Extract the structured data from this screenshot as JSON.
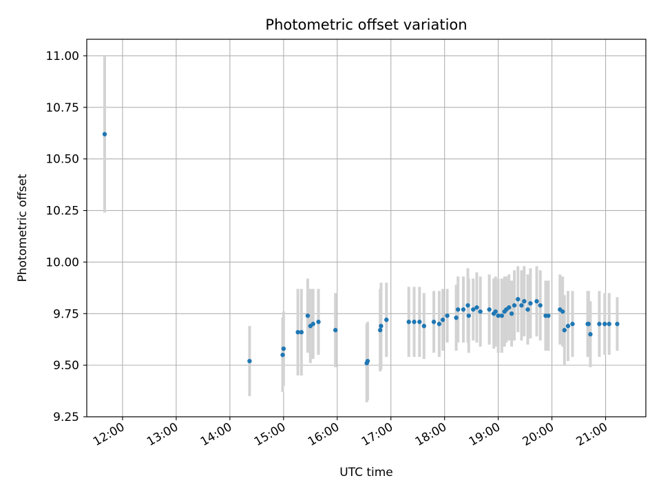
{
  "chart_data": {
    "type": "scatter",
    "title": "Photometric offset variation",
    "xlabel": "UTC time",
    "ylabel": "Photometric offset",
    "x_tick_labels": [
      "12:00",
      "13:00",
      "14:00",
      "15:00",
      "16:00",
      "17:00",
      "18:00",
      "19:00",
      "20:00",
      "21:00"
    ],
    "y_tick_labels": [
      "9.25",
      "9.50",
      "9.75",
      "10.00",
      "10.25",
      "10.50",
      "10.75",
      "11.00"
    ],
    "xlim": [
      "11:20",
      "21:45"
    ],
    "ylim": [
      9.25,
      11.08
    ],
    "grid": true,
    "colors": {
      "points": "#1f77b4",
      "errorbars": "#d3d3d3",
      "grid": "#b0b0b0"
    },
    "series": [
      {
        "x": [
          "11:40",
          "14:22",
          "14:59",
          "15:00",
          "15:16",
          "15:20",
          "15:27",
          "15:30",
          "15:33",
          "15:39",
          "15:58",
          "16:33",
          "16:34",
          "16:48",
          "16:49",
          "16:55",
          "17:20",
          "17:26",
          "17:32",
          "17:37",
          "17:48",
          "17:54",
          "17:58",
          "18:03",
          "18:13",
          "18:15",
          "18:21",
          "18:26",
          "18:27",
          "18:32",
          "18:36",
          "18:40",
          "18:50",
          "18:55",
          "18:57",
          "19:00",
          "19:04",
          "19:07",
          "19:09",
          "19:12",
          "19:15",
          "19:18",
          "19:22",
          "19:26",
          "19:29",
          "19:33",
          "19:36",
          "19:43",
          "19:47",
          "19:53",
          "19:56",
          "20:09",
          "20:12",
          "20:14",
          "20:18",
          "20:23",
          "20:40",
          "20:41",
          "20:43",
          "20:53",
          "20:59",
          "21:04",
          "21:13"
        ],
        "y": [
          10.62,
          9.52,
          9.55,
          9.58,
          9.66,
          9.66,
          9.74,
          9.69,
          9.7,
          9.71,
          9.67,
          9.51,
          9.52,
          9.67,
          9.69,
          9.72,
          9.71,
          9.71,
          9.71,
          9.69,
          9.71,
          9.7,
          9.72,
          9.74,
          9.73,
          9.77,
          9.77,
          9.79,
          9.74,
          9.77,
          9.78,
          9.76,
          9.77,
          9.75,
          9.76,
          9.74,
          9.74,
          9.76,
          9.77,
          9.78,
          9.75,
          9.79,
          9.82,
          9.79,
          9.81,
          9.77,
          9.8,
          9.81,
          9.79,
          9.74,
          9.74,
          9.77,
          9.76,
          9.67,
          9.69,
          9.7,
          9.7,
          9.7,
          9.65,
          9.7,
          9.7,
          9.7,
          9.7
        ],
        "yerr": [
          0.38,
          0.17,
          0.18,
          0.18,
          0.21,
          0.21,
          0.18,
          0.18,
          0.17,
          0.16,
          0.18,
          0.19,
          0.19,
          0.2,
          0.21,
          0.18,
          0.17,
          0.17,
          0.17,
          0.16,
          0.15,
          0.16,
          0.15,
          0.13,
          0.16,
          0.16,
          0.16,
          0.18,
          0.18,
          0.15,
          0.17,
          0.17,
          0.17,
          0.17,
          0.17,
          0.18,
          0.18,
          0.17,
          0.16,
          0.16,
          0.16,
          0.17,
          0.16,
          0.17,
          0.17,
          0.17,
          0.17,
          0.17,
          0.17,
          0.17,
          0.17,
          0.17,
          0.17,
          0.17,
          0.17,
          0.16,
          0.16,
          0.16,
          0.16,
          0.16,
          0.15,
          0.15,
          0.13
        ]
      }
    ]
  }
}
